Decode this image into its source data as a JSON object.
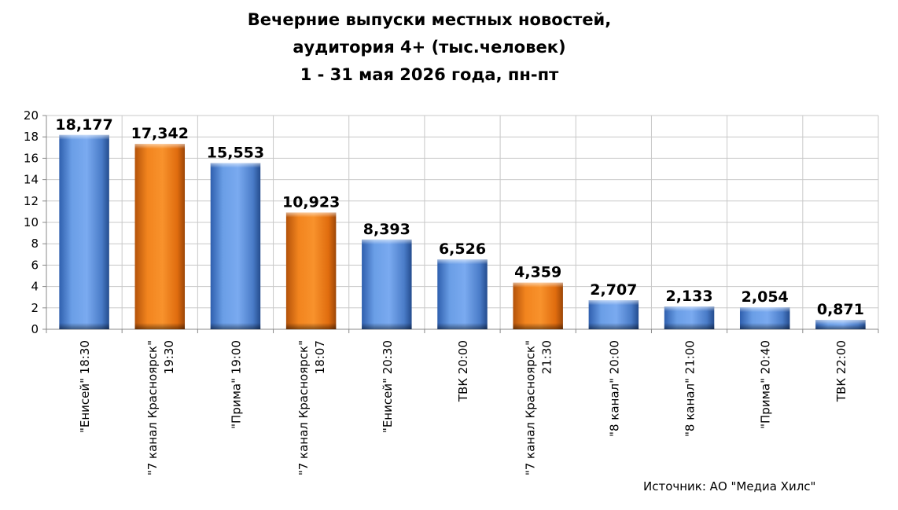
{
  "chart_data": {
    "type": "bar",
    "title": [
      "Вечерние выпуски местных новостей,",
      "аудитория 4+ (тыс.человек)",
      "1 - 31 мая 2026 года, пн-пт"
    ],
    "categories": [
      [
        "\"Енисей\" 18:30"
      ],
      [
        "\"7 канал Красноярск\"",
        "19:30"
      ],
      [
        "\"Прима\" 19:00"
      ],
      [
        "\"7 канал Красноярск\"",
        "18:07"
      ],
      [
        "\"Енисей\" 20:30"
      ],
      [
        "ТВК 20:00"
      ],
      [
        "\"7 канал Красноярск\"",
        "21:30"
      ],
      [
        "\"8 канал\" 20:00"
      ],
      [
        "\"8 канал\" 21:00"
      ],
      [
        "\"Прима\" 20:40"
      ],
      [
        "ТВК 22:00"
      ]
    ],
    "values": [
      18.177,
      17.342,
      15.553,
      10.923,
      8.393,
      6.526,
      4.359,
      2.707,
      2.133,
      2.054,
      0.871
    ],
    "data_labels": [
      "18,177",
      "17,342",
      "15,553",
      "10,923",
      "8,393",
      "6,526",
      "4,359",
      "2,707",
      "2,133",
      "2,054",
      "0,871"
    ],
    "bar_colors": [
      "#5b8fd8",
      "#f07a14",
      "#5b8fd8",
      "#f07a14",
      "#5b8fd8",
      "#5b8fd8",
      "#f07a14",
      "#5b8fd8",
      "#5b8fd8",
      "#5b8fd8",
      "#5b8fd8"
    ],
    "ylim": [
      0,
      20
    ],
    "yticks": [
      "0",
      "2",
      "4",
      "6",
      "8",
      "10",
      "12",
      "14",
      "16",
      "18",
      "20"
    ],
    "grid": true,
    "legend": "none"
  },
  "source": "Источник: АО \"Медиа Хилс\""
}
